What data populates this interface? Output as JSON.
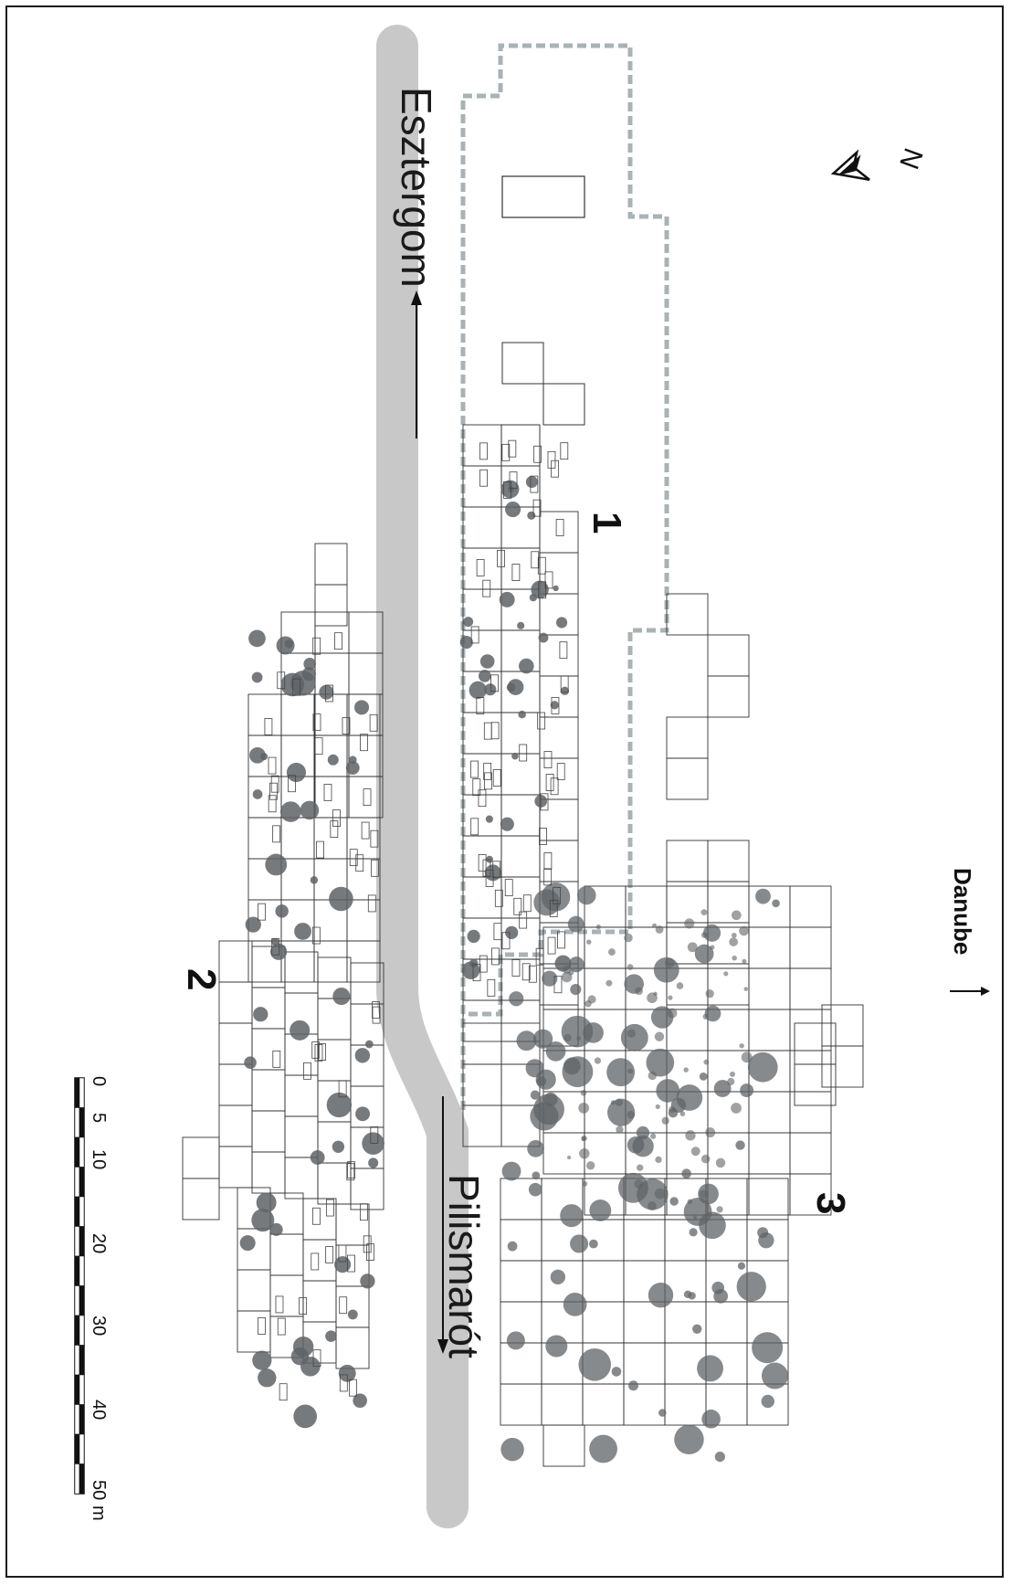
{
  "map": {
    "road": {
      "label_top": "Esztergom",
      "label_bottom": "Pilismarót"
    },
    "river_label": "Danube",
    "north_label": "N",
    "areas": [
      {
        "id": "1",
        "label": "1"
      },
      {
        "id": "2",
        "label": "2"
      },
      {
        "id": "3",
        "label": "3"
      }
    ],
    "scale_bar": {
      "ticks": [
        "0",
        "5",
        "10",
        "20",
        "30",
        "40",
        "50"
      ],
      "unit": "m"
    },
    "colors": {
      "road": "#c8c8c8",
      "boundary": "#a9b2b5",
      "feature": "#5f6366",
      "grid": "#333333"
    }
  }
}
